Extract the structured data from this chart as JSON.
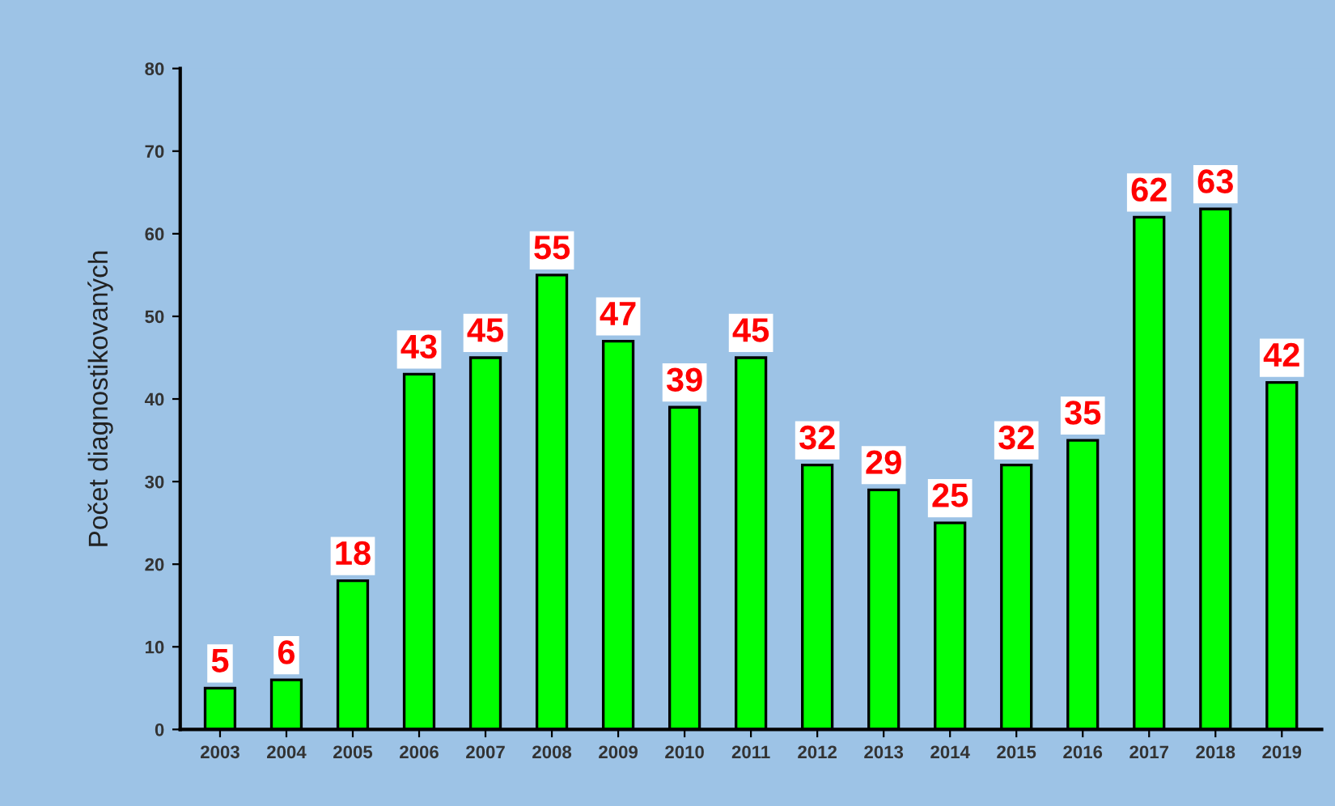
{
  "chart_data": {
    "type": "bar",
    "ylabel": "Počet diagnostikovaných",
    "categories": [
      "2003",
      "2004",
      "2005",
      "2006",
      "2007",
      "2008",
      "2009",
      "2010",
      "2011",
      "2012",
      "2013",
      "2014",
      "2015",
      "2016",
      "2017",
      "2018",
      "2019"
    ],
    "values": [
      5,
      6,
      18,
      43,
      45,
      55,
      47,
      39,
      45,
      32,
      29,
      25,
      32,
      35,
      62,
      63,
      42
    ],
    "color": "#00ff00",
    "ylim": [
      0,
      80
    ],
    "yticks": [
      0,
      10,
      20,
      30,
      40,
      50,
      60,
      70,
      80
    ],
    "data_labels": true,
    "grid": false,
    "legend": false
  }
}
